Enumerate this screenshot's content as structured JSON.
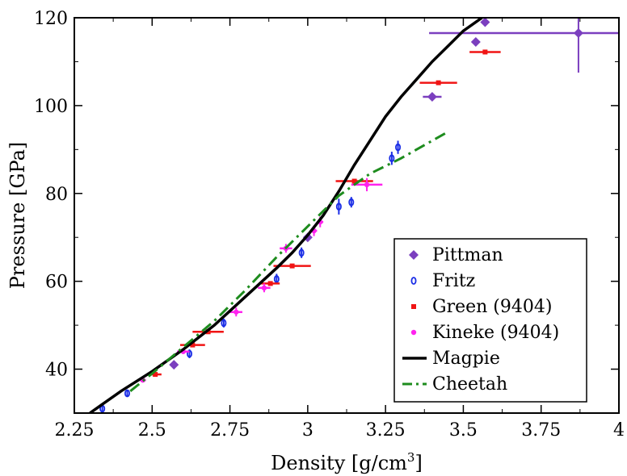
{
  "chart_data": {
    "type": "scatter",
    "xlabel": "Density [g/cm",
    "xlabel_sup": "3",
    "xlabel_end": "]",
    "ylabel": "Pressure [GPa]",
    "xlim": [
      2.25,
      4.0
    ],
    "ylim": [
      30,
      120
    ],
    "xticks": [
      2.25,
      2.5,
      2.75,
      3.0,
      3.25,
      3.5,
      3.75,
      4.0
    ],
    "xtick_labels": [
      "2.25",
      "2.5",
      "2.75",
      "3",
      "3.25",
      "3.5",
      "3.75",
      "4"
    ],
    "yticks": [
      40,
      60,
      80,
      100,
      120
    ],
    "ytick_labels": [
      "40",
      "60",
      "80",
      "100",
      "120"
    ],
    "grid": false,
    "legend_position": "lower-right",
    "series": [
      {
        "name": "Pittman",
        "kind": "points",
        "marker": "diamond",
        "color": "#7B3FBF",
        "points": [
          {
            "x": 2.57,
            "y": 41.0
          },
          {
            "x": 3.0,
            "y": 70.0
          },
          {
            "x": 3.4,
            "y": 102.0,
            "xerr": 0.03
          },
          {
            "x": 3.54,
            "y": 114.5
          },
          {
            "x": 3.57,
            "y": 119.0
          },
          {
            "x": 3.87,
            "y": 116.5,
            "xerr": 0.48,
            "yerr": 9.0
          }
        ]
      },
      {
        "name": "Fritz",
        "kind": "points",
        "marker": "open-circle",
        "color": "#1B2EE6",
        "points": [
          {
            "x": 2.34,
            "y": 31.0,
            "yerr": 0.8
          },
          {
            "x": 2.42,
            "y": 34.5,
            "yerr": 0.8
          },
          {
            "x": 2.62,
            "y": 43.5,
            "yerr": 1.0
          },
          {
            "x": 2.73,
            "y": 50.5,
            "yerr": 1.0
          },
          {
            "x": 2.9,
            "y": 60.5,
            "yerr": 1.2
          },
          {
            "x": 2.98,
            "y": 66.5,
            "yerr": 1.2
          },
          {
            "x": 3.1,
            "y": 77.0,
            "yerr": 1.8
          },
          {
            "x": 3.14,
            "y": 78.0,
            "yerr": 1.2
          },
          {
            "x": 3.27,
            "y": 88.0,
            "yerr": 1.5
          },
          {
            "x": 3.29,
            "y": 90.5,
            "yerr": 1.5
          }
        ]
      },
      {
        "name": "Green (9404)",
        "kind": "points",
        "marker": "square",
        "color": "#F01414",
        "points": [
          {
            "x": 2.51,
            "y": 38.8,
            "xerr": 0.02
          },
          {
            "x": 2.63,
            "y": 45.5,
            "xerr": 0.04
          },
          {
            "x": 2.68,
            "y": 48.5,
            "xerr": 0.05
          },
          {
            "x": 2.88,
            "y": 59.5,
            "xerr": 0.03
          },
          {
            "x": 2.95,
            "y": 63.5,
            "xerr": 0.06
          },
          {
            "x": 3.15,
            "y": 82.8,
            "xerr": 0.06
          },
          {
            "x": 3.42,
            "y": 105.2,
            "xerr": 0.06
          },
          {
            "x": 3.57,
            "y": 112.2,
            "xerr": 0.05
          }
        ]
      },
      {
        "name": "Kineke (9404)",
        "kind": "points",
        "marker": "small-circle",
        "color": "#FF22EE",
        "points": [
          {
            "x": 2.47,
            "y": 37.5,
            "xerr": 0.01
          },
          {
            "x": 2.6,
            "y": 44.0,
            "xerr": 0.02
          },
          {
            "x": 2.77,
            "y": 53.0,
            "xerr": 0.02,
            "yerr": 1.0
          },
          {
            "x": 2.86,
            "y": 58.5,
            "xerr": 0.02,
            "yerr": 1.0
          },
          {
            "x": 2.93,
            "y": 67.5,
            "xerr": 0.02,
            "yerr": 1.0
          },
          {
            "x": 3.02,
            "y": 71.5,
            "xerr": 0.01,
            "yerr": 1.2
          },
          {
            "x": 3.04,
            "y": 73.5,
            "xerr": 0.01,
            "yerr": 1.2
          },
          {
            "x": 3.19,
            "y": 82.0,
            "xerr": 0.05,
            "yerr": 1.5
          }
        ]
      },
      {
        "name": "Magpie",
        "kind": "line",
        "style": "solid",
        "color": "#000000",
        "points": [
          {
            "x": 2.3,
            "y": 30.0
          },
          {
            "x": 2.4,
            "y": 35.0
          },
          {
            "x": 2.5,
            "y": 39.5
          },
          {
            "x": 2.6,
            "y": 44.5
          },
          {
            "x": 2.7,
            "y": 50.0
          },
          {
            "x": 2.8,
            "y": 56.5
          },
          {
            "x": 2.9,
            "y": 63.0
          },
          {
            "x": 2.95,
            "y": 66.5
          },
          {
            "x": 3.0,
            "y": 70.5
          },
          {
            "x": 3.05,
            "y": 75.0
          },
          {
            "x": 3.1,
            "y": 80.5
          },
          {
            "x": 3.15,
            "y": 86.5
          },
          {
            "x": 3.2,
            "y": 92.0
          },
          {
            "x": 3.25,
            "y": 97.5
          },
          {
            "x": 3.3,
            "y": 102.0
          },
          {
            "x": 3.35,
            "y": 106.0
          },
          {
            "x": 3.4,
            "y": 110.0
          },
          {
            "x": 3.45,
            "y": 113.5
          },
          {
            "x": 3.5,
            "y": 117.0
          },
          {
            "x": 3.56,
            "y": 120.0
          }
        ]
      },
      {
        "name": "Cheetah",
        "kind": "line",
        "style": "dash-dot",
        "color": "#1E8C1E",
        "points": [
          {
            "x": 2.43,
            "y": 35.0
          },
          {
            "x": 2.5,
            "y": 39.0
          },
          {
            "x": 2.6,
            "y": 45.0
          },
          {
            "x": 2.7,
            "y": 51.0
          },
          {
            "x": 2.8,
            "y": 58.0
          },
          {
            "x": 2.9,
            "y": 65.5
          },
          {
            "x": 3.0,
            "y": 72.5
          },
          {
            "x": 3.05,
            "y": 76.0
          },
          {
            "x": 3.1,
            "y": 79.5
          },
          {
            "x": 3.15,
            "y": 82.0
          },
          {
            "x": 3.2,
            "y": 84.5
          },
          {
            "x": 3.3,
            "y": 88.0
          },
          {
            "x": 3.4,
            "y": 92.0
          },
          {
            "x": 3.45,
            "y": 94.0
          }
        ]
      }
    ]
  }
}
